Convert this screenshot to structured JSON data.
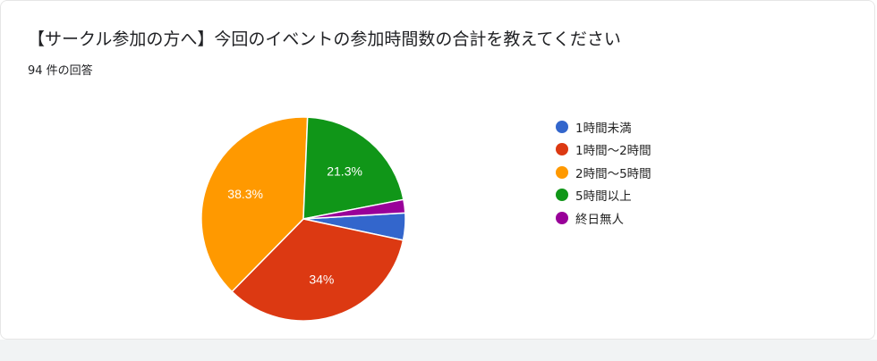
{
  "header": {
    "title": "【サークル参加の方へ】今回のイベントの参加時間数の合計を教えてください",
    "response_count": "94 件の回答"
  },
  "chart_data": {
    "type": "pie",
    "title": "【サークル参加の方へ】今回のイベントの参加時間数の合計を教えてください",
    "categories": [
      "1時間未満",
      "1時間〜2時間",
      "2時間〜5時間",
      "5時間以上",
      "終日無人"
    ],
    "values": [
      4.3,
      34,
      38.3,
      21.3,
      2.1
    ],
    "colors": [
      "#3366cc",
      "#dc3912",
      "#ff9900",
      "#109618",
      "#990099"
    ],
    "slice_labels": [
      "",
      "34%",
      "38.3%",
      "21.3%",
      ""
    ],
    "legend_position": "right",
    "start_angle_deg": 90,
    "direction": "clockwise"
  }
}
